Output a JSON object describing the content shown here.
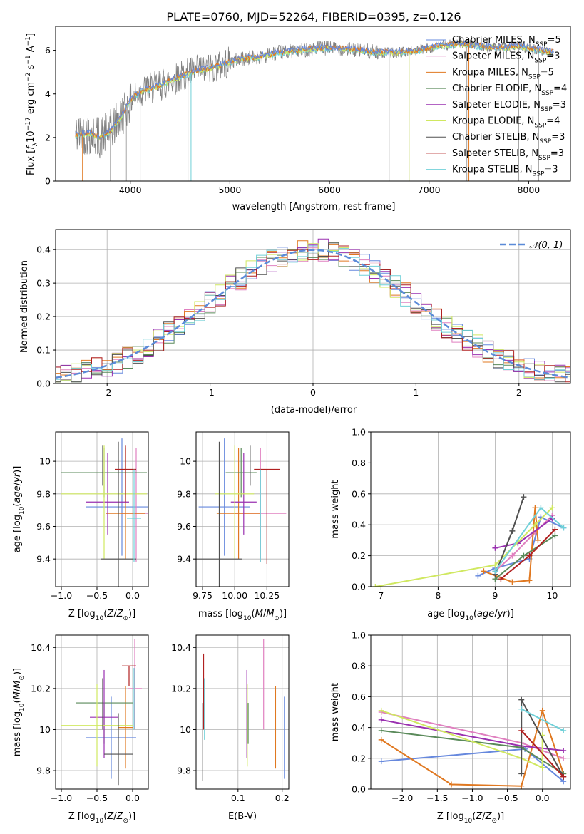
{
  "title": "PLATE=0760, MJD=52264, FIBERID=0395, z=0.126",
  "colors": {
    "Chabrier MILES": "#6688dd",
    "Salpeter MILES": "#e080c0",
    "Kroupa MILES": "#e07820",
    "Chabrier ELODIE": "#5a8a5a",
    "Salpeter ELODIE": "#9a30b0",
    "Kroupa ELODIE": "#d0e860",
    "Chabrier STELIB": "#505050",
    "Salpeter STELIB": "#b02020",
    "Kroupa STELIB": "#70d0d8",
    "data": "#808080",
    "gaussian": "#5b8bd8"
  },
  "chart_data": [
    {
      "id": "spectrum",
      "type": "line",
      "xlabel": "wavelength [Angstrom, rest frame]",
      "ylabel": "Flux [f_λ 10^-17 erg cm^-2 s^-1 A^-1]",
      "xlim": [
        3250,
        8420
      ],
      "ylim": [
        0,
        7.1
      ],
      "xticks": [
        4000,
        5000,
        6000,
        7000,
        8000
      ],
      "yticks": [
        0,
        2,
        4,
        6
      ],
      "grid": false,
      "legend": "top-right",
      "legend_entries": [
        {
          "name": "Chabrier MILES",
          "nssp": "5"
        },
        {
          "name": "Salpeter MILES",
          "nssp": "3"
        },
        {
          "name": "Kroupa MILES",
          "nssp": "5"
        },
        {
          "name": "Chabrier ELODIE",
          "nssp": "4"
        },
        {
          "name": "Salpeter ELODIE",
          "nssp": "3"
        },
        {
          "name": "Kroupa ELODIE",
          "nssp": "4"
        },
        {
          "name": "Chabrier STELIB",
          "nssp": "3"
        },
        {
          "name": "Salpeter STELIB",
          "nssp": "3"
        },
        {
          "name": "Kroupa STELIB",
          "nssp": "3"
        }
      ],
      "continuum": {
        "x": [
          3450,
          3600,
          3700,
          3800,
          3900,
          4000,
          4100,
          4300,
          4500,
          4700,
          4900,
          5100,
          5300,
          5500,
          5700,
          5900,
          6100,
          6300,
          6500,
          6700,
          6900,
          7100,
          7300,
          7500,
          7700,
          7900,
          8100,
          8250
        ],
        "y": [
          2.1,
          2.2,
          2.0,
          2.3,
          2.9,
          3.7,
          4.1,
          4.4,
          4.8,
          5.1,
          5.3,
          5.6,
          5.7,
          5.9,
          6.0,
          6.1,
          6.1,
          6.0,
          5.9,
          5.9,
          6.0,
          6.2,
          6.3,
          6.2,
          6.1,
          6.2,
          6.0,
          5.9
        ]
      }
    },
    {
      "id": "residuals",
      "type": "histogram",
      "xlabel": "(data-model)/error",
      "ylabel": "Normed distribution",
      "xlim": [
        -2.5,
        2.5
      ],
      "ylim": [
        0,
        0.46
      ],
      "xticks": [
        -2,
        -1,
        0,
        1,
        2
      ],
      "yticks": [
        0.0,
        0.1,
        0.2,
        0.3,
        0.4
      ],
      "grid": true,
      "legend": "top-right",
      "legend_label": "𝒩(0, 1)",
      "bin_width": 0.1,
      "reference": "normal(0,1)"
    },
    {
      "id": "age-vs-z",
      "type": "scatter",
      "xlabel": "Z [log10(Z/Z⊙)]",
      "ylabel": "age  [log10(age/yr)]",
      "xlim": [
        -1.08,
        0.22
      ],
      "ylim": [
        9.23,
        10.18
      ],
      "xticks": [
        -1.0,
        -0.5,
        0.0
      ],
      "xticklabels": [
        "−1.0",
        "−0.5",
        "0.0"
      ],
      "yticks": [
        9.4,
        9.6,
        9.8,
        10.0
      ],
      "grid": true,
      "points": [
        {
          "series": "Chabrier MILES",
          "x": -0.15,
          "xerr": 0.5,
          "y": 9.72,
          "yerr": [
            0.3,
            0.42
          ]
        },
        {
          "series": "Salpeter MILES",
          "x": 0.05,
          "xerr": 0.22,
          "y": 9.68,
          "yerr": [
            0.3,
            0.4
          ]
        },
        {
          "series": "Kroupa MILES",
          "x": -0.1,
          "xerr": 0.28,
          "y": 9.68,
          "yerr": [
            0.28,
            0.4
          ]
        },
        {
          "series": "Chabrier ELODIE",
          "x": -0.4,
          "xerr": 0.6,
          "y": 9.93,
          "yerr": [
            0.15,
            0.15
          ]
        },
        {
          "series": "Salpeter ELODIE",
          "x": -0.35,
          "xerr": 0.3,
          "y": 9.75,
          "yerr": [
            0.2,
            0.3
          ]
        },
        {
          "series": "Kroupa ELODIE",
          "x": -0.4,
          "xerr": 0.6,
          "y": 9.8,
          "yerr": [
            0.4,
            0.3
          ]
        },
        {
          "series": "Chabrier STELIB",
          "x": -0.2,
          "xerr": 0.25,
          "y": 9.4,
          "yerr": [
            0.5,
            0.72
          ]
        },
        {
          "series": "Salpeter STELIB",
          "x": -0.1,
          "xerr": 0.15,
          "y": 9.95,
          "yerr": [
            0.2,
            0.15
          ]
        },
        {
          "series": "Kroupa STELIB",
          "x": 0.02,
          "xerr": 0.1,
          "y": 9.65,
          "yerr": [
            0.27,
            0.3
          ]
        },
        {
          "series": "Chabrier STELIB",
          "x": -0.42,
          "xerr": 0.0,
          "y": 9.95,
          "yerr": [
            0.1,
            0.15
          ]
        }
      ]
    },
    {
      "id": "age-vs-mass",
      "type": "scatter",
      "xlabel": "mass [log10(M/M⊙)]",
      "ylabel": "",
      "xlim": [
        9.7,
        10.42
      ],
      "ylim": [
        9.23,
        10.18
      ],
      "xticks": [
        9.75,
        10.0,
        10.25
      ],
      "xticklabels": [
        "9.75",
        "10.00",
        "10.25"
      ],
      "yticks": [
        9.4,
        9.6,
        9.8,
        10.0
      ],
      "grid": true,
      "points": [
        {
          "series": "Chabrier MILES",
          "x": 9.92,
          "xerr": 0.2,
          "y": 9.72,
          "yerr": [
            0.3,
            0.42
          ]
        },
        {
          "series": "Salpeter MILES",
          "x": 10.2,
          "xerr": 0.2,
          "y": 9.68,
          "yerr": [
            0.3,
            0.4
          ]
        },
        {
          "series": "Kroupa MILES",
          "x": 10.03,
          "xerr": 0.17,
          "y": 9.68,
          "yerr": [
            0.28,
            0.4
          ]
        },
        {
          "series": "Chabrier ELODIE",
          "x": 10.05,
          "xerr": 0.12,
          "y": 9.93,
          "yerr": [
            0.15,
            0.15
          ]
        },
        {
          "series": "Salpeter ELODIE",
          "x": 10.07,
          "xerr": 0.1,
          "y": 9.75,
          "yerr": [
            0.2,
            0.3
          ]
        },
        {
          "series": "Kroupa ELODIE",
          "x": 10.0,
          "xerr": 0.15,
          "y": 9.8,
          "yerr": [
            0.4,
            0.3
          ]
        },
        {
          "series": "Chabrier STELIB",
          "x": 9.88,
          "xerr": 0.18,
          "y": 9.4,
          "yerr": [
            0.5,
            0.72
          ]
        },
        {
          "series": "Salpeter STELIB",
          "x": 10.25,
          "xerr": 0.1,
          "y": 9.95,
          "yerr": [
            0.58,
            0.0
          ]
        },
        {
          "series": "Kroupa STELIB",
          "x": 10.2,
          "xerr": 0.0,
          "y": 9.65,
          "yerr": [
            0.27,
            0.3
          ]
        },
        {
          "series": "Chabrier STELIB",
          "x": 10.12,
          "xerr": 0.0,
          "y": 9.95,
          "yerr": [
            0.1,
            0.15
          ]
        }
      ]
    },
    {
      "id": "weight-vs-age",
      "type": "line",
      "xlabel": "age  [log10(age/yr)]",
      "ylabel": "mass weight",
      "xlim": [
        6.82,
        10.32
      ],
      "ylim": [
        0,
        1.0
      ],
      "xticks": [
        7,
        8,
        9,
        10
      ],
      "yticks": [
        0.0,
        0.2,
        0.4,
        0.6,
        0.8,
        1.0
      ],
      "grid": true,
      "series": [
        {
          "name": "Chabrier MILES",
          "x": [
            8.7,
            9.0,
            9.6,
            9.8,
            10.2
          ],
          "y": [
            0.07,
            0.12,
            0.18,
            0.45,
            0.38
          ]
        },
        {
          "name": "Salpeter MILES",
          "x": [
            9.0,
            9.3,
            9.7,
            10.0
          ],
          "y": [
            0.1,
            0.2,
            0.35,
            0.46
          ]
        },
        {
          "name": "Kroupa MILES",
          "x": [
            8.8,
            9.3,
            9.6,
            9.7,
            9.75
          ],
          "y": [
            0.1,
            0.03,
            0.04,
            0.51,
            0.3
          ]
        },
        {
          "name": "Chabrier ELODIE",
          "x": [
            9.0,
            9.5,
            10.05
          ],
          "y": [
            0.05,
            0.2,
            0.33
          ]
        },
        {
          "name": "Salpeter ELODIE",
          "x": [
            9.0,
            9.4,
            10.0
          ],
          "y": [
            0.25,
            0.28,
            0.44
          ]
        },
        {
          "name": "Kroupa ELODIE",
          "x": [
            6.9,
            9.0,
            9.7,
            10.0
          ],
          "y": [
            0.0,
            0.14,
            0.4,
            0.51
          ]
        },
        {
          "name": "Chabrier STELIB",
          "x": [
            9.0,
            9.3,
            9.5
          ],
          "y": [
            0.08,
            0.36,
            0.58
          ]
        },
        {
          "name": "Salpeter STELIB",
          "x": [
            9.1,
            9.6,
            10.05
          ],
          "y": [
            0.05,
            0.2,
            0.37
          ]
        },
        {
          "name": "Kroupa STELIB",
          "x": [
            9.0,
            9.8,
            10.2
          ],
          "y": [
            0.1,
            0.51,
            0.38
          ]
        }
      ]
    },
    {
      "id": "mass-vs-z",
      "type": "scatter",
      "xlabel": "Z [log10(Z/Z⊙)]",
      "ylabel": "mass [log10(M/M⊙)]",
      "xlim": [
        -1.08,
        0.22
      ],
      "ylim": [
        9.71,
        10.46
      ],
      "xticks": [
        -1.0,
        -0.5,
        0.0
      ],
      "xticklabels": [
        "−1.0",
        "−0.5",
        "0.0"
      ],
      "yticks": [
        9.8,
        10.0,
        10.2,
        10.4
      ],
      "grid": true,
      "points": [
        {
          "series": "Chabrier MILES",
          "x": -0.3,
          "xerr": 0.35,
          "y": 9.96,
          "yerr": [
            0.2,
            0.2
          ]
        },
        {
          "series": "Salpeter MILES",
          "x": 0.03,
          "xerr": 0.1,
          "y": 10.2,
          "yerr": [
            0.2,
            0.24
          ]
        },
        {
          "series": "Kroupa MILES",
          "x": -0.1,
          "xerr": 0.1,
          "y": 10.01,
          "yerr": [
            0.2,
            0.2
          ]
        },
        {
          "series": "Chabrier ELODIE",
          "x": -0.4,
          "xerr": 0.4,
          "y": 10.13,
          "yerr": [
            0.2,
            0.0
          ]
        },
        {
          "series": "Salpeter ELODIE",
          "x": -0.4,
          "xerr": 0.2,
          "y": 10.06,
          "yerr": [
            0.2,
            0.23
          ]
        },
        {
          "series": "Kroupa ELODIE",
          "x": -0.5,
          "xerr": 0.5,
          "y": 10.02,
          "yerr": [
            0.2,
            0.2
          ]
        },
        {
          "series": "Chabrier STELIB",
          "x": -0.2,
          "xerr": 0.2,
          "y": 9.88,
          "yerr": [
            0.15,
            0.2
          ]
        },
        {
          "series": "Salpeter STELIB",
          "x": -0.05,
          "xerr": 0.1,
          "y": 10.31,
          "yerr": [
            0.1,
            0.0
          ]
        },
        {
          "series": "Kroupa STELIB",
          "x": 0.02,
          "xerr": 0.0,
          "y": 10.2,
          "yerr": [
            0.2,
            0.1
          ]
        },
        {
          "series": "Chabrier STELIB",
          "x": -0.42,
          "xerr": 0.0,
          "y": 10.1,
          "yerr": [
            0.1,
            0.15
          ]
        }
      ]
    },
    {
      "id": "mass-vs-ebv",
      "type": "scatter",
      "xlabel": "E(B-V)",
      "ylabel": "",
      "xlim": [
        0.005,
        0.215
      ],
      "ylim": [
        9.71,
        10.46
      ],
      "xticks": [
        0.1,
        0.2
      ],
      "xticklabels": [
        "0.1",
        "0.2"
      ],
      "yticks": [
        9.8,
        10.0,
        10.2,
        10.4
      ],
      "grid": true,
      "points": [
        {
          "series": "Chabrier MILES",
          "x": 0.205,
          "y": 9.96,
          "yerr": [
            0.2,
            0.2
          ]
        },
        {
          "series": "Salpeter MILES",
          "x": 0.158,
          "y": 10.2,
          "yerr": [
            0.2,
            0.24
          ]
        },
        {
          "series": "Kroupa MILES",
          "x": 0.185,
          "y": 10.01,
          "yerr": [
            0.2,
            0.2
          ]
        },
        {
          "series": "Chabrier ELODIE",
          "x": 0.123,
          "y": 10.13,
          "yerr": [
            0.2,
            0.0
          ]
        },
        {
          "series": "Salpeter ELODIE",
          "x": 0.12,
          "y": 10.06,
          "yerr": [
            0.2,
            0.23
          ]
        },
        {
          "series": "Kroupa ELODIE",
          "x": 0.121,
          "y": 10.02,
          "yerr": [
            0.2,
            0.2
          ]
        },
        {
          "series": "Chabrier STELIB",
          "x": 0.02,
          "y": 9.93,
          "yerr": [
            0.18,
            0.2
          ]
        },
        {
          "series": "Salpeter STELIB",
          "x": 0.022,
          "y": 10.2,
          "yerr": [
            0.2,
            0.17
          ]
        },
        {
          "series": "Kroupa STELIB",
          "x": 0.024,
          "y": 10.1,
          "yerr": [
            0.15,
            0.15
          ]
        }
      ]
    },
    {
      "id": "weight-vs-z",
      "type": "line",
      "xlabel": "Z [log10(Z/Z⊙)]",
      "ylabel": "mass weight",
      "xlim": [
        -2.45,
        0.4
      ],
      "ylim": [
        0,
        1.0
      ],
      "xticks": [
        -2.0,
        -1.5,
        -1.0,
        -0.5,
        0.0
      ],
      "xticklabels": [
        "−2.0",
        "−1.5",
        "−1.0",
        "−0.5",
        "0.0"
      ],
      "yticks": [
        0.0,
        0.2,
        0.4,
        0.6,
        0.8,
        1.0
      ],
      "grid": true,
      "series": [
        {
          "name": "Chabrier MILES",
          "x": [
            -2.3,
            -0.25,
            0.3
          ],
          "y": [
            0.18,
            0.26,
            0.05
          ]
        },
        {
          "name": "Salpeter MILES",
          "x": [
            -2.3,
            -0.3,
            0.3
          ],
          "y": [
            0.5,
            0.3,
            0.2
          ]
        },
        {
          "name": "Kroupa MILES",
          "x": [
            -2.3,
            -1.3,
            -0.3,
            0.0,
            0.3
          ],
          "y": [
            0.32,
            0.03,
            0.02,
            0.51,
            0.1
          ]
        },
        {
          "name": "Chabrier ELODIE",
          "x": [
            -2.3,
            -0.3,
            0.3
          ],
          "y": [
            0.38,
            0.27,
            0.1
          ]
        },
        {
          "name": "Salpeter ELODIE",
          "x": [
            -2.3,
            -0.3,
            0.3
          ],
          "y": [
            0.45,
            0.28,
            0.25
          ]
        },
        {
          "name": "Kroupa ELODIE",
          "x": [
            -2.3,
            -0.3,
            0.0,
            0.0
          ],
          "y": [
            0.51,
            0.2,
            0.14,
            0.35
          ]
        },
        {
          "name": "Chabrier STELIB",
          "x": [
            -0.3,
            -0.3,
            0.3
          ],
          "y": [
            0.1,
            0.58,
            0.08
          ]
        },
        {
          "name": "Salpeter STELIB",
          "x": [
            -0.3,
            0.3
          ],
          "y": [
            0.38,
            0.08
          ]
        },
        {
          "name": "Kroupa STELIB",
          "x": [
            -0.3,
            0.3
          ],
          "y": [
            0.52,
            0.38
          ]
        }
      ]
    }
  ]
}
